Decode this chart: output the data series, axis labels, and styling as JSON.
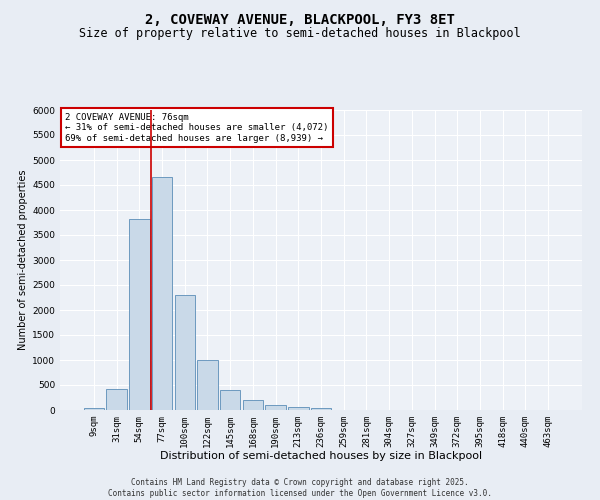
{
  "title": "2, COVEWAY AVENUE, BLACKPOOL, FY3 8ET",
  "subtitle": "Size of property relative to semi-detached houses in Blackpool",
  "xlabel": "Distribution of semi-detached houses by size in Blackpool",
  "ylabel": "Number of semi-detached properties",
  "categories": [
    "9sqm",
    "31sqm",
    "54sqm",
    "77sqm",
    "100sqm",
    "122sqm",
    "145sqm",
    "168sqm",
    "190sqm",
    "213sqm",
    "236sqm",
    "259sqm",
    "281sqm",
    "304sqm",
    "327sqm",
    "349sqm",
    "372sqm",
    "395sqm",
    "418sqm",
    "440sqm",
    "463sqm"
  ],
  "values": [
    50,
    430,
    3820,
    4670,
    2300,
    1000,
    410,
    200,
    100,
    70,
    50,
    0,
    0,
    0,
    0,
    0,
    0,
    0,
    0,
    0,
    0
  ],
  "bar_color": "#c9d9e8",
  "bar_edge_color": "#5b8db8",
  "vline_color": "#cc0000",
  "vline_x_index": 3,
  "annotation_text": "2 COVEWAY AVENUE: 76sqm\n← 31% of semi-detached houses are smaller (4,072)\n69% of semi-detached houses are larger (8,939) →",
  "ylim": [
    0,
    6000
  ],
  "yticks": [
    0,
    500,
    1000,
    1500,
    2000,
    2500,
    3000,
    3500,
    4000,
    4500,
    5000,
    5500,
    6000
  ],
  "footer": "Contains HM Land Registry data © Crown copyright and database right 2025.\nContains public sector information licensed under the Open Government Licence v3.0.",
  "bg_color": "#e8edf4",
  "plot_bg_color": "#edf1f7",
  "grid_color": "#ffffff",
  "title_fontsize": 10,
  "subtitle_fontsize": 8.5,
  "xlabel_fontsize": 8,
  "ylabel_fontsize": 7,
  "tick_fontsize": 6.5,
  "annot_fontsize": 6.5,
  "footer_fontsize": 5.5
}
